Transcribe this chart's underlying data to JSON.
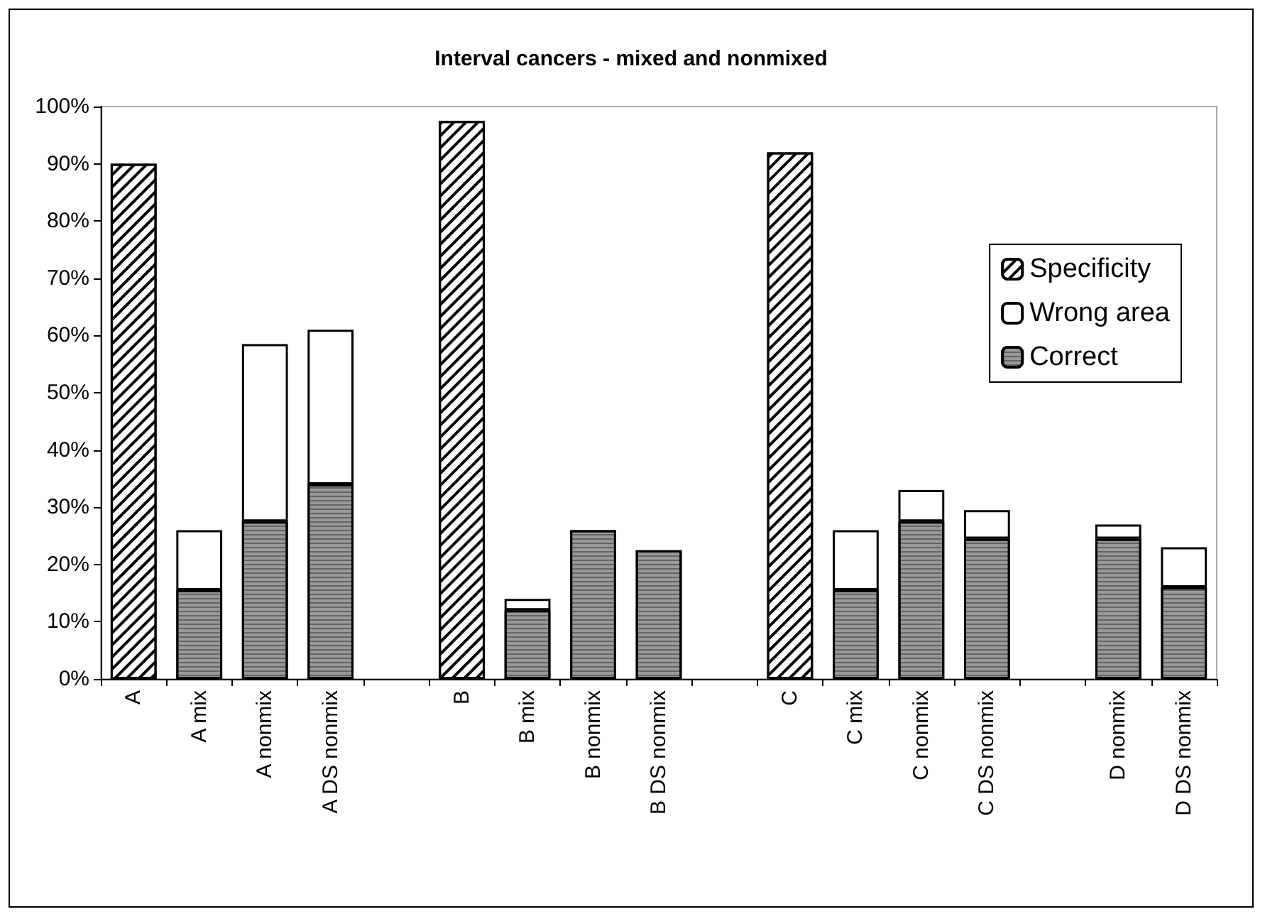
{
  "chart_data": {
    "type": "bar",
    "title": "Interval cancers - mixed and nonmixed",
    "categories": [
      "A",
      "A mix",
      "A nonmix",
      "A DS nonmix",
      null,
      "B",
      "B mix",
      "B nonmix",
      "B DS nonmix",
      null,
      "C",
      "C mix",
      "C nonmix",
      "C DS nonmix",
      null,
      "D nonmix",
      "D DS nonmix"
    ],
    "stacked": true,
    "series": [
      {
        "name": "Correct",
        "color": "#999999",
        "values": [
          null,
          15.5,
          27.5,
          34,
          null,
          null,
          12,
          26,
          22.5,
          null,
          null,
          15.5,
          27.5,
          24.5,
          null,
          24.5,
          16
        ]
      },
      {
        "name": "Wrong area",
        "color": "#ffffff",
        "values": [
          null,
          10.5,
          31,
          27,
          null,
          null,
          2,
          null,
          null,
          null,
          null,
          10.5,
          5.5,
          5,
          null,
          2.5,
          7
        ]
      },
      {
        "name": "Specificity",
        "color": "#ffffff",
        "values": [
          90,
          null,
          null,
          null,
          null,
          97.5,
          null,
          null,
          null,
          null,
          92,
          null,
          null,
          null,
          null,
          null,
          null
        ]
      }
    ],
    "ylim": [
      0,
      100
    ],
    "yticks": [
      {
        "value": 0,
        "label": "0%"
      },
      {
        "value": 10,
        "label": "10%"
      },
      {
        "value": 20,
        "label": "20%"
      },
      {
        "value": 30,
        "label": "30%"
      },
      {
        "value": 40,
        "label": "40%"
      },
      {
        "value": 50,
        "label": "50%"
      },
      {
        "value": 60,
        "label": "60%"
      },
      {
        "value": 70,
        "label": "70%"
      },
      {
        "value": 80,
        "label": "80%"
      },
      {
        "value": 90,
        "label": "90%"
      },
      {
        "value": 100,
        "label": "100%"
      }
    ],
    "legend": "right"
  }
}
